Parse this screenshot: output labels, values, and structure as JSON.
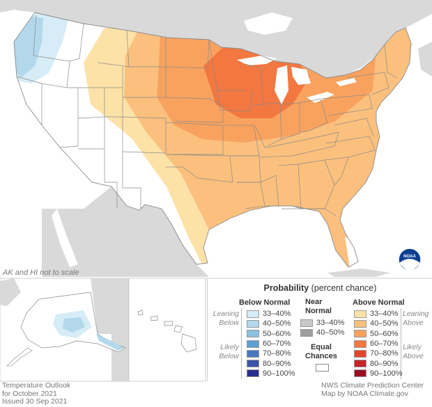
{
  "map": {
    "scale_note": "AK and HI not to scale",
    "logo_text": "NOAA"
  },
  "legend": {
    "title_bold": "Probability",
    "title_rest": "(percent chance)",
    "below_heading": "Below Normal",
    "near_heading_1": "Near",
    "near_heading_2": "Normal",
    "above_heading": "Above Normal",
    "leaning_below": [
      "Leaning",
      "Below"
    ],
    "likely_below": [
      "Likely",
      "Below"
    ],
    "leaning_above": [
      "Leaning",
      "Above"
    ],
    "likely_above": [
      "Likely",
      "Above"
    ],
    "equal_1": "Equal",
    "equal_2": "Chances",
    "below": [
      {
        "label": "33–40%",
        "color": "#d6ecf6"
      },
      {
        "label": "40–50%",
        "color": "#b3d8ec"
      },
      {
        "label": "50–60%",
        "color": "#8cc2df"
      },
      {
        "label": "60–70%",
        "color": "#5f9fd0"
      },
      {
        "label": "70–80%",
        "color": "#4a78bf"
      },
      {
        "label": "80–90%",
        "color": "#3853a8"
      },
      {
        "label": "90–100%",
        "color": "#2a2f8e"
      }
    ],
    "near": [
      {
        "label": "33–40%",
        "color": "#c8c8c8"
      },
      {
        "label": "40–50%",
        "color": "#9e9e9e"
      }
    ],
    "above": [
      {
        "label": "33–40%",
        "color": "#fde2a8"
      },
      {
        "label": "40–50%",
        "color": "#fbc07e"
      },
      {
        "label": "50–60%",
        "color": "#f9a25f"
      },
      {
        "label": "60–70%",
        "color": "#f27740"
      },
      {
        "label": "70–80%",
        "color": "#e2452d"
      },
      {
        "label": "80–90%",
        "color": "#c8222a"
      },
      {
        "label": "90–100%",
        "color": "#9a0d24"
      }
    ],
    "equal_color": "#ffffff"
  },
  "footer": {
    "left": [
      "Temperature Outlook",
      "for October 2021",
      "Issued 30 Sep 2021"
    ],
    "right": [
      "NWS Climate Prediction Center",
      "Map by NOAA Climate.gov"
    ]
  }
}
